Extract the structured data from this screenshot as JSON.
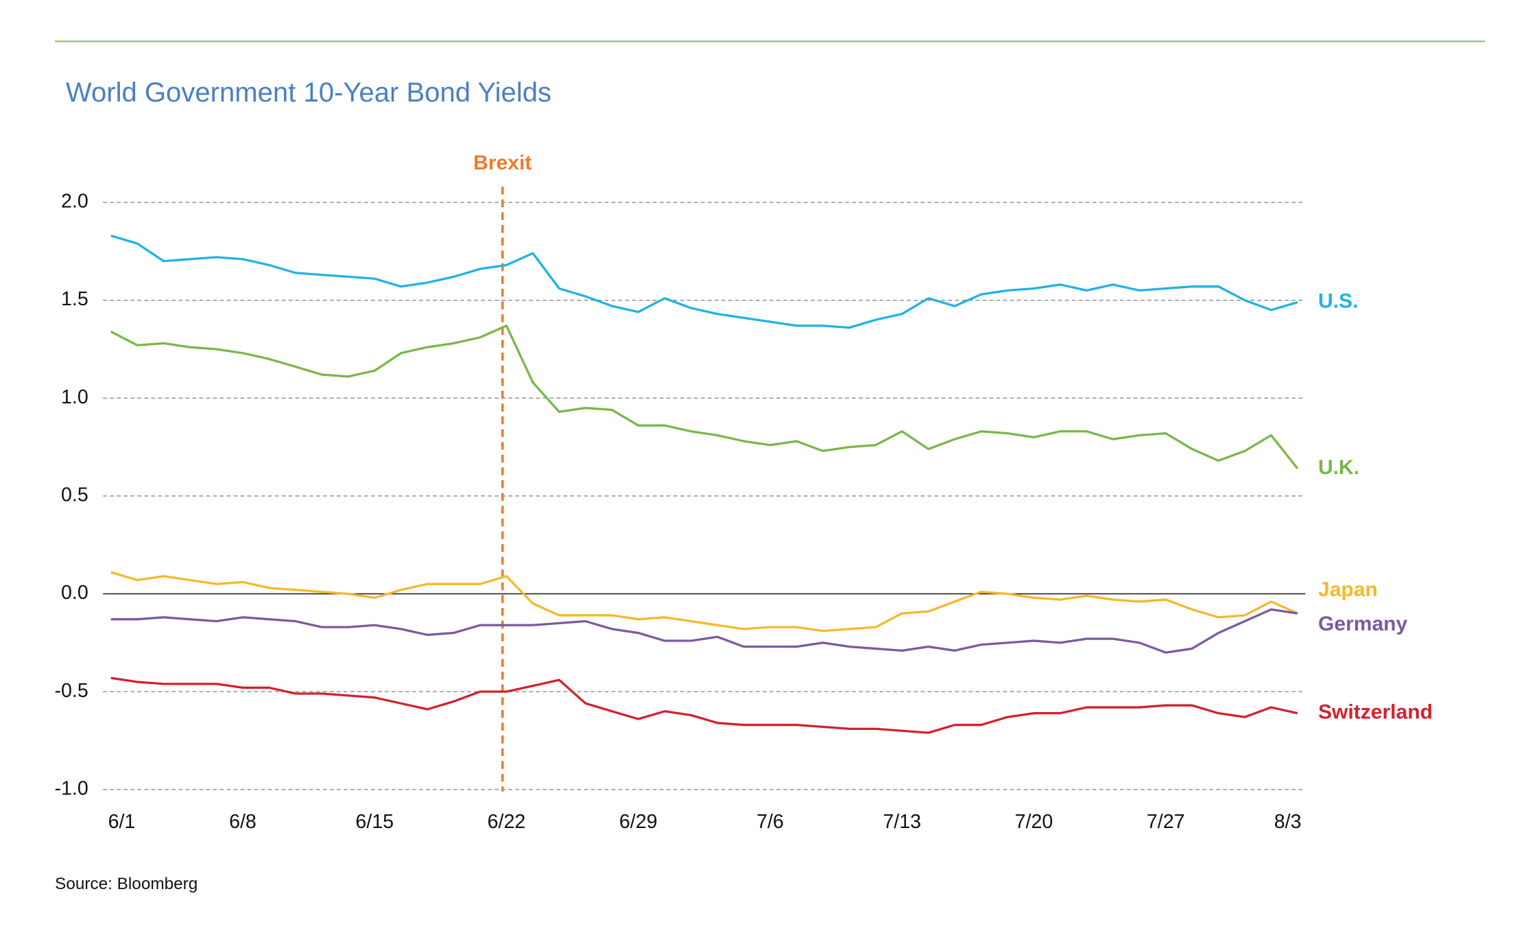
{
  "chart_data": {
    "type": "line",
    "title": "World Government 10-Year Bond Yields",
    "source": "Source: Bloomberg",
    "categories": [
      "6/1",
      null,
      null,
      null,
      null,
      "6/8",
      null,
      null,
      null,
      null,
      "6/15",
      null,
      null,
      null,
      null,
      "6/22",
      null,
      null,
      null,
      null,
      "6/29",
      null,
      null,
      null,
      null,
      "7/6",
      null,
      null,
      null,
      null,
      "7/13",
      null,
      null,
      null,
      null,
      "7/20",
      null,
      null,
      null,
      null,
      "7/27",
      null,
      null,
      null,
      null,
      "8/3"
    ],
    "series": [
      {
        "name": "U.S.",
        "color": "#1fb2e5",
        "values": [
          1.83,
          1.79,
          1.7,
          1.71,
          1.72,
          1.71,
          1.68,
          1.64,
          1.63,
          1.62,
          1.61,
          1.57,
          1.59,
          1.62,
          1.66,
          1.68,
          1.74,
          1.56,
          1.52,
          1.47,
          1.44,
          1.51,
          1.46,
          1.43,
          1.41,
          1.39,
          1.37,
          1.37,
          1.36,
          1.4,
          1.43,
          1.51,
          1.47,
          1.53,
          1.55,
          1.56,
          1.58,
          1.55,
          1.58,
          1.55,
          1.56,
          1.57,
          1.57,
          1.5,
          1.45,
          1.49
        ]
      },
      {
        "name": "U.K.",
        "color": "#7ab648",
        "values": [
          1.34,
          1.27,
          1.28,
          1.26,
          1.25,
          1.23,
          1.2,
          1.16,
          1.12,
          1.11,
          1.14,
          1.23,
          1.26,
          1.28,
          1.31,
          1.37,
          1.08,
          0.93,
          0.95,
          0.94,
          0.86,
          0.86,
          0.83,
          0.81,
          0.78,
          0.76,
          0.78,
          0.73,
          0.75,
          0.76,
          0.83,
          0.74,
          0.79,
          0.83,
          0.82,
          0.8,
          0.83,
          0.83,
          0.79,
          0.81,
          0.82,
          0.74,
          0.68,
          0.73,
          0.81,
          0.64
        ]
      },
      {
        "name": "Japan",
        "color": "#f5b82a",
        "values": [
          0.11,
          0.07,
          0.09,
          0.07,
          0.05,
          0.06,
          0.03,
          0.02,
          0.01,
          0.0,
          -0.02,
          0.02,
          0.05,
          0.05,
          0.05,
          0.09,
          -0.05,
          -0.11,
          -0.11,
          -0.11,
          -0.13,
          -0.12,
          -0.14,
          -0.16,
          -0.18,
          -0.17,
          -0.17,
          -0.19,
          -0.18,
          -0.17,
          -0.1,
          -0.09,
          -0.04,
          0.01,
          0.0,
          -0.02,
          -0.03,
          -0.01,
          -0.03,
          -0.04,
          -0.03,
          -0.08,
          -0.12,
          -0.11,
          -0.04,
          -0.1
        ]
      },
      {
        "name": "Germany",
        "color": "#7b5a9e",
        "values": [
          -0.13,
          -0.13,
          -0.12,
          -0.13,
          -0.14,
          -0.12,
          -0.13,
          -0.14,
          -0.17,
          -0.17,
          -0.16,
          -0.18,
          -0.21,
          -0.2,
          -0.16,
          -0.16,
          -0.16,
          -0.15,
          -0.14,
          -0.18,
          -0.2,
          -0.24,
          -0.24,
          -0.22,
          -0.27,
          -0.27,
          -0.27,
          -0.25,
          -0.27,
          -0.28,
          -0.29,
          -0.27,
          -0.29,
          -0.26,
          -0.25,
          -0.24,
          -0.25,
          -0.23,
          -0.23,
          -0.25,
          -0.3,
          -0.28,
          -0.2,
          -0.14,
          -0.08,
          -0.1
        ]
      },
      {
        "name": "Switzerland",
        "color": "#d4202e",
        "values": [
          -0.43,
          -0.45,
          -0.46,
          -0.46,
          -0.46,
          -0.48,
          -0.48,
          -0.51,
          -0.51,
          -0.52,
          -0.53,
          -0.56,
          -0.59,
          -0.55,
          -0.5,
          -0.5,
          -0.47,
          -0.44,
          -0.56,
          -0.6,
          -0.64,
          -0.6,
          -0.62,
          -0.66,
          -0.67,
          -0.67,
          -0.67,
          -0.68,
          -0.69,
          -0.69,
          -0.7,
          -0.71,
          -0.67,
          -0.67,
          -0.63,
          -0.61,
          -0.61,
          -0.58,
          -0.58,
          -0.58,
          -0.57,
          -0.57,
          -0.61,
          -0.63,
          -0.58,
          -0.61
        ]
      }
    ],
    "annotations": [
      {
        "label": "Brexit",
        "x": "6/22",
        "color": "#f07a2a"
      }
    ],
    "ylim": [
      -1,
      2
    ],
    "yticks": [
      {
        "value": -1,
        "label": "-1.0"
      },
      -0.5,
      {
        "value": 0,
        "label": "0.0"
      },
      0.5,
      {
        "value": 1,
        "label": "1.0"
      },
      1.5,
      {
        "value": 2,
        "label": "2.0"
      }
    ],
    "grid": true
  }
}
